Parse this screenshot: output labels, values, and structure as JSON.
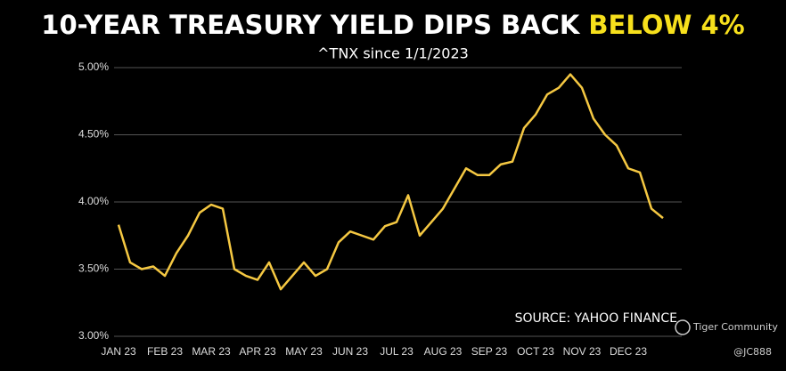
{
  "chart_data": {
    "type": "line",
    "title": "10-YEAR TREASURY YIELD DIPS BACK",
    "title_highlight": "BELOW 4%",
    "subtitle": "^TNX since 1/1/2023",
    "annotations": [
      "SOURCE: YAHOO FINANCE",
      "Tiger Community",
      "@JC888"
    ],
    "categories": [
      "JAN 23",
      null,
      null,
      null,
      "FEB 23",
      null,
      null,
      null,
      "MAR 23",
      null,
      null,
      null,
      "APR 23",
      null,
      null,
      null,
      "MAY 23",
      null,
      null,
      null,
      "JUN 23",
      null,
      null,
      null,
      "JUL 23",
      null,
      null,
      null,
      "AUG 23",
      null,
      null,
      null,
      "SEP 23",
      null,
      null,
      null,
      "OCT 23",
      null,
      null,
      null,
      "NOV 23",
      null,
      null,
      null,
      "DEC 23",
      null,
      null,
      null
    ],
    "color": "#f5c842",
    "values": [
      3.83,
      3.55,
      3.5,
      3.52,
      3.45,
      3.62,
      3.75,
      3.92,
      3.98,
      3.95,
      3.5,
      3.45,
      3.42,
      3.55,
      3.35,
      3.45,
      3.55,
      3.45,
      3.5,
      3.7,
      3.78,
      3.75,
      3.72,
      3.82,
      3.85,
      4.05,
      3.75,
      3.85,
      3.95,
      4.1,
      4.25,
      4.2,
      4.2,
      4.28,
      4.3,
      4.55,
      4.65,
      4.8,
      4.85,
      4.95,
      4.85,
      4.62,
      4.5,
      4.42,
      4.25,
      4.22,
      3.95,
      3.88
    ],
    "ylim": [
      3,
      5
    ],
    "yticks": [
      {
        "value": 3,
        "label": "3.00%"
      },
      {
        "value": 3.5,
        "label": "3.50%"
      },
      {
        "value": 4,
        "label": "4.00%"
      },
      {
        "value": 4.5,
        "label": "4.50%"
      },
      {
        "value": 5,
        "label": "5.00%"
      }
    ],
    "grid": true
  }
}
